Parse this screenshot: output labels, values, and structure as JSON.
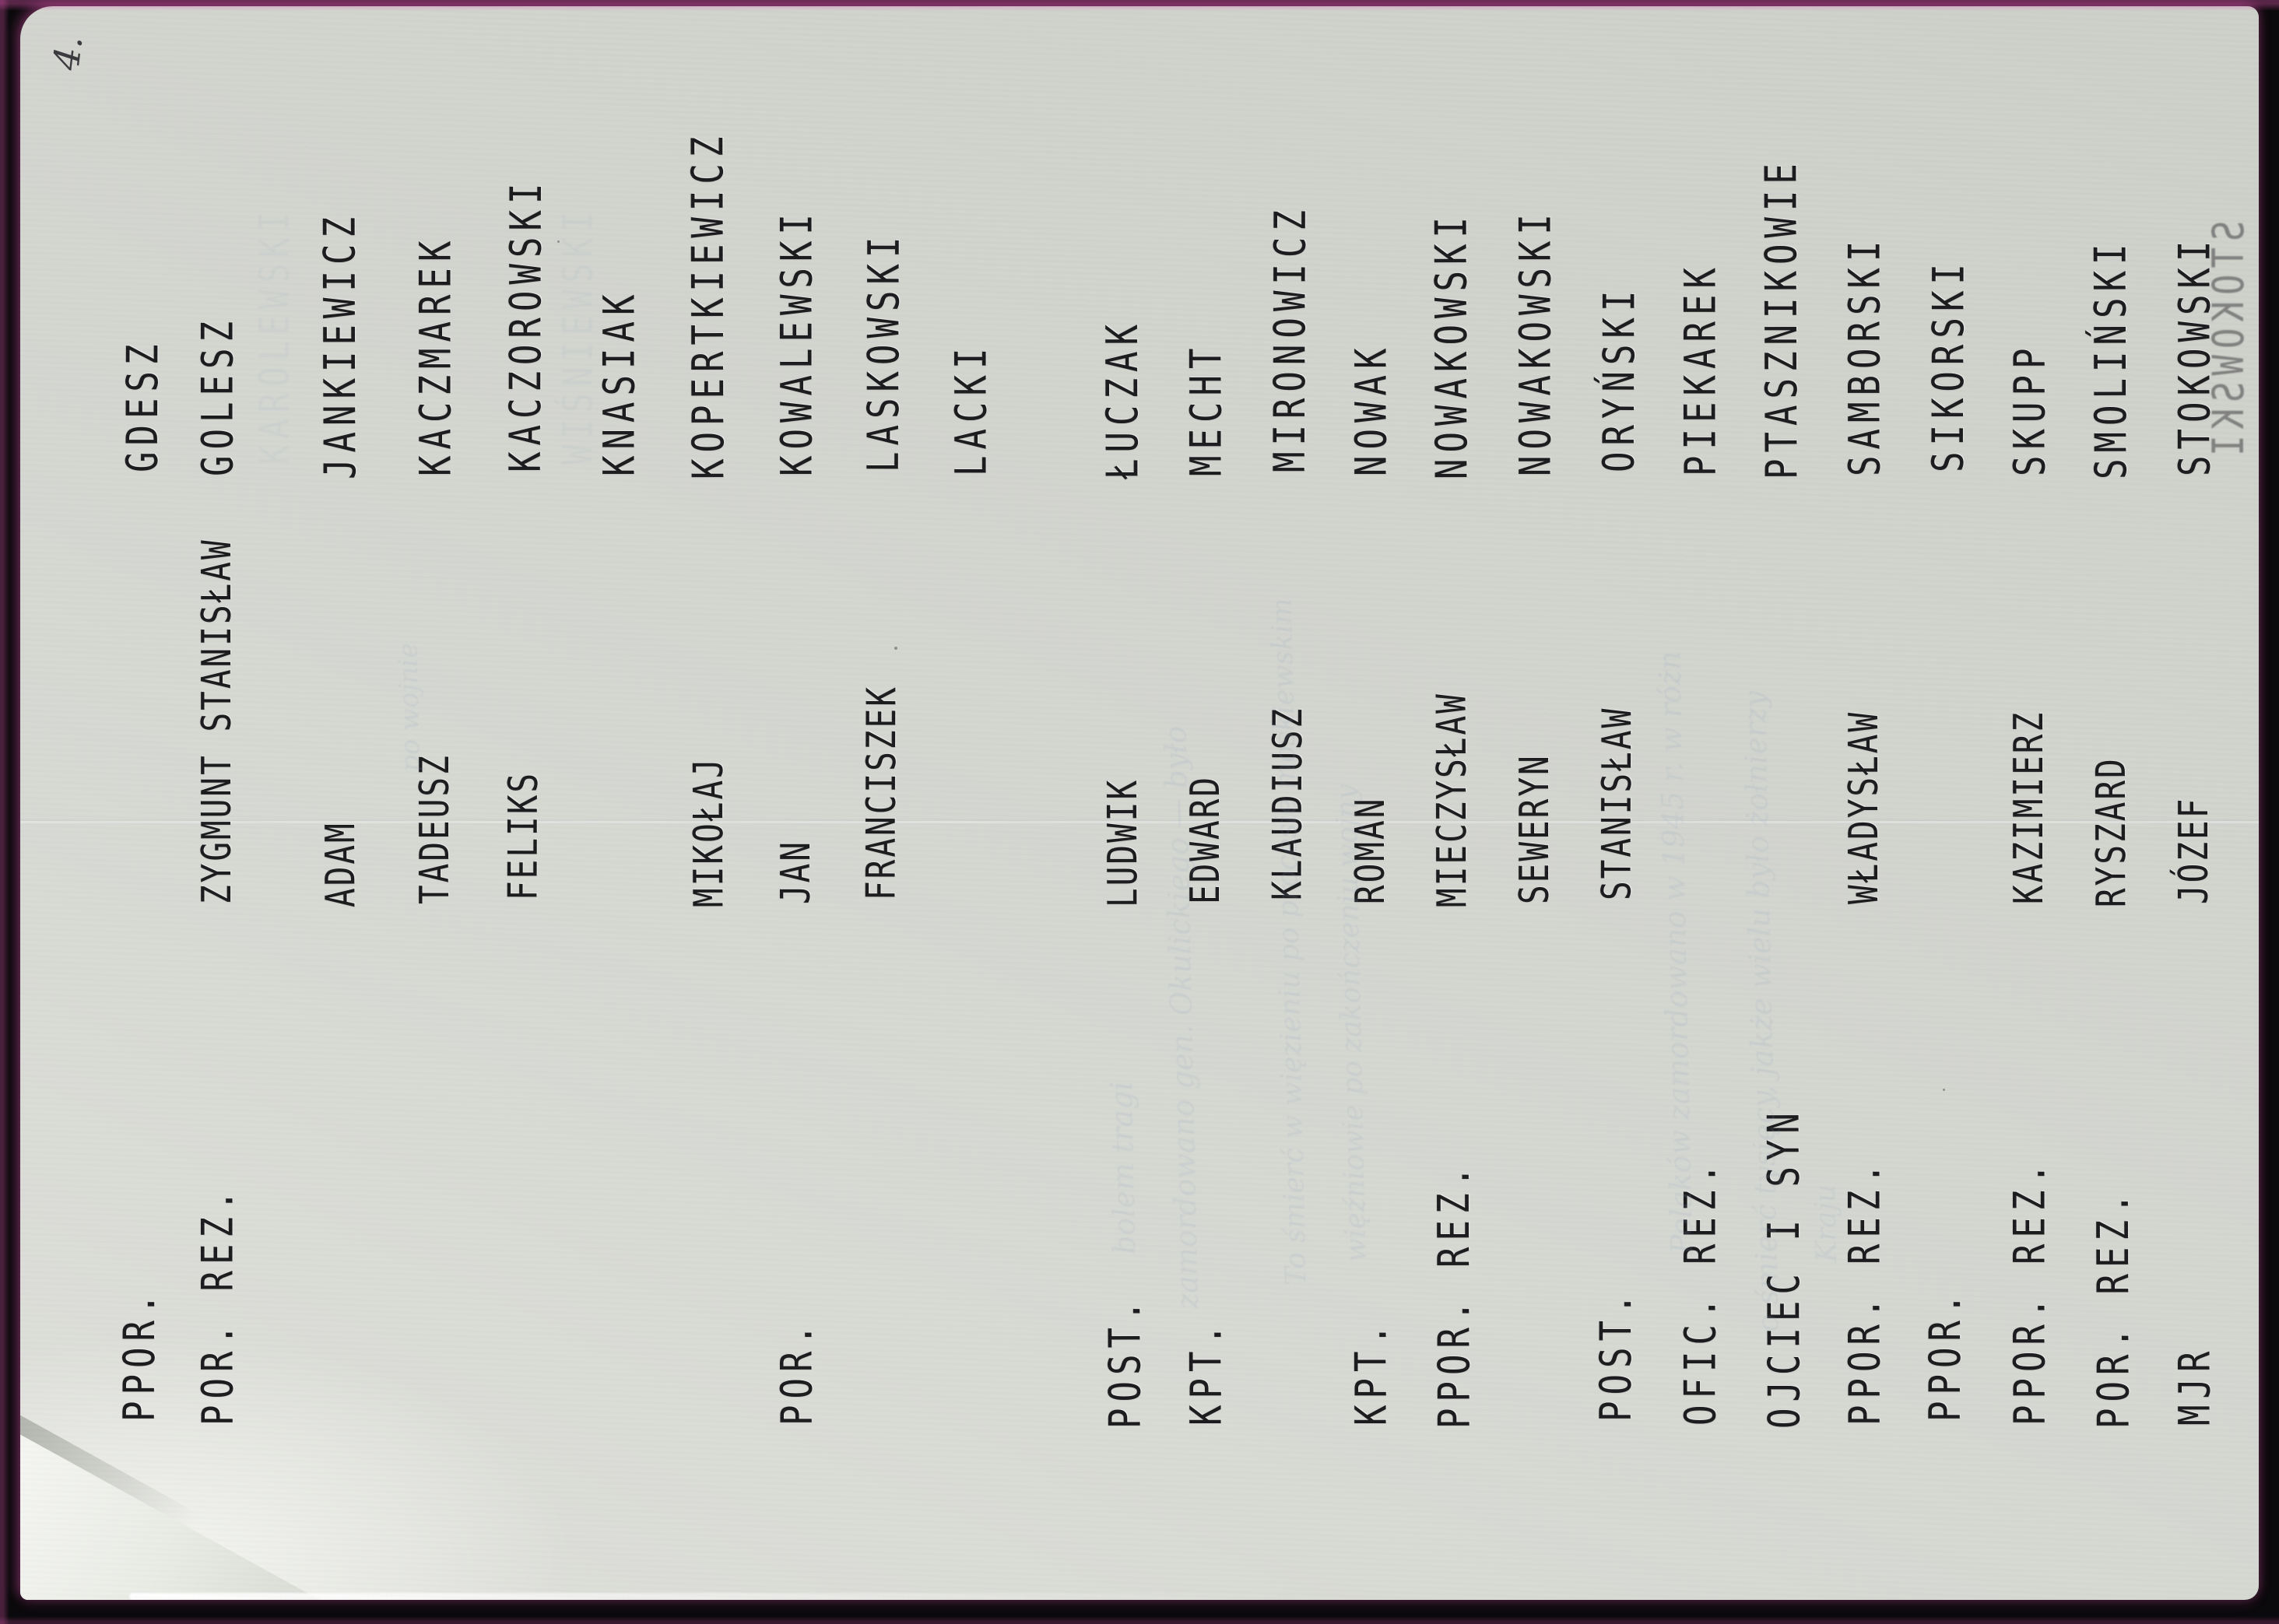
{
  "document": {
    "page_number": "4.",
    "description": "Scanned sideways page with hand-lettered list of names and military ranks"
  },
  "entries": [
    {
      "rank": "PPOR.",
      "given_names": "",
      "surname": "GDESZ"
    },
    {
      "rank": "POR. REZ.",
      "given_names": "ZYGMUNT STANISŁAW",
      "surname": "GOLESZ"
    },
    {
      "rank": "",
      "given_names": "ADAM",
      "surname": "JANKIEWICZ"
    },
    {
      "rank": "",
      "given_names": "TADEUSZ",
      "surname": "KACZMAREK"
    },
    {
      "rank": "",
      "given_names": "FELIKS",
      "surname": "KACZOROWSKI"
    },
    {
      "rank": "",
      "given_names": "",
      "surname": "KNASIAK"
    },
    {
      "rank": "",
      "given_names": "MIKOŁAJ",
      "surname": "KOPERTKIEWICZ"
    },
    {
      "rank": "POR.",
      "given_names": "JAN",
      "surname": "KOWALEWSKI"
    },
    {
      "rank": "",
      "given_names": "FRANCISZEK",
      "surname": "LASKOWSKI"
    },
    {
      "rank": "",
      "given_names": "",
      "surname": "LACKI"
    },
    {
      "rank": "POST.",
      "given_names": "LUDWIK",
      "surname": "ŁUCZAK"
    },
    {
      "rank": "KPT.",
      "given_names": "EDWARD",
      "surname": "MECHT"
    },
    {
      "rank": "",
      "given_names": "KLAUDIUSZ",
      "surname": "MIRONOWICZ"
    },
    {
      "rank": "KPT.",
      "given_names": "ROMAN",
      "surname": "NOWAK"
    },
    {
      "rank": "PPOR. REZ.",
      "given_names": "MIECZYSŁAW",
      "surname": "NOWAKOWSKI"
    },
    {
      "rank": "",
      "given_names": "SEWERYN",
      "surname": "NOWAKOWSKI"
    },
    {
      "rank": "POST.",
      "given_names": "STANISŁAW",
      "surname": "ORYŃSKI"
    },
    {
      "rank": "OFIC. REZ.",
      "given_names": "",
      "surname": "PIEKAREK"
    },
    {
      "rank": "OJCIEC I SYN",
      "given_names": "",
      "surname": "PTASZNIKOWIE"
    },
    {
      "rank": "PPOR. REZ.",
      "given_names": "WŁADYSŁAW",
      "surname": "SAMBORSKI"
    },
    {
      "rank": "PPOR.",
      "given_names": "",
      "surname": "SIKORSKI"
    },
    {
      "rank": "PPOR. REZ.",
      "given_names": "KAZIMIERZ",
      "surname": "SKUPP"
    },
    {
      "rank": "POR. REZ.",
      "given_names": "RYSZARD",
      "surname": "SMOLIŃSKI"
    },
    {
      "rank": "MJR",
      "given_names": "JÓZEF",
      "surname": "STOKOWSKI"
    }
  ],
  "scan_artifacts": {
    "edge_echo_surname": "STOKOWSKI",
    "ghost_handwriting": [
      "bolem tragi",
      "zamordowano gen. Okulickiego — było",
      "To śmierć w więzieniu po procesie moskiewskim",
      "więźniowie po zakończeniu wojny",
      "po wojnie",
      "Polaków zamordowano w 1945 r. w różn",
      "o śmierć tysięcy, jakże wielu było żołnierzy",
      "Kraju"
    ],
    "ghost_typed_names": [
      "KAROLEWSKI",
      "WIŚNIEWSKI"
    ]
  },
  "colors": {
    "paper": "#d2d4ce",
    "ink": "#1b1b1d",
    "scanner_background": "#0a090b",
    "edge_fringe": "#d654a9",
    "ghost_ink": "#8fa5c0"
  }
}
